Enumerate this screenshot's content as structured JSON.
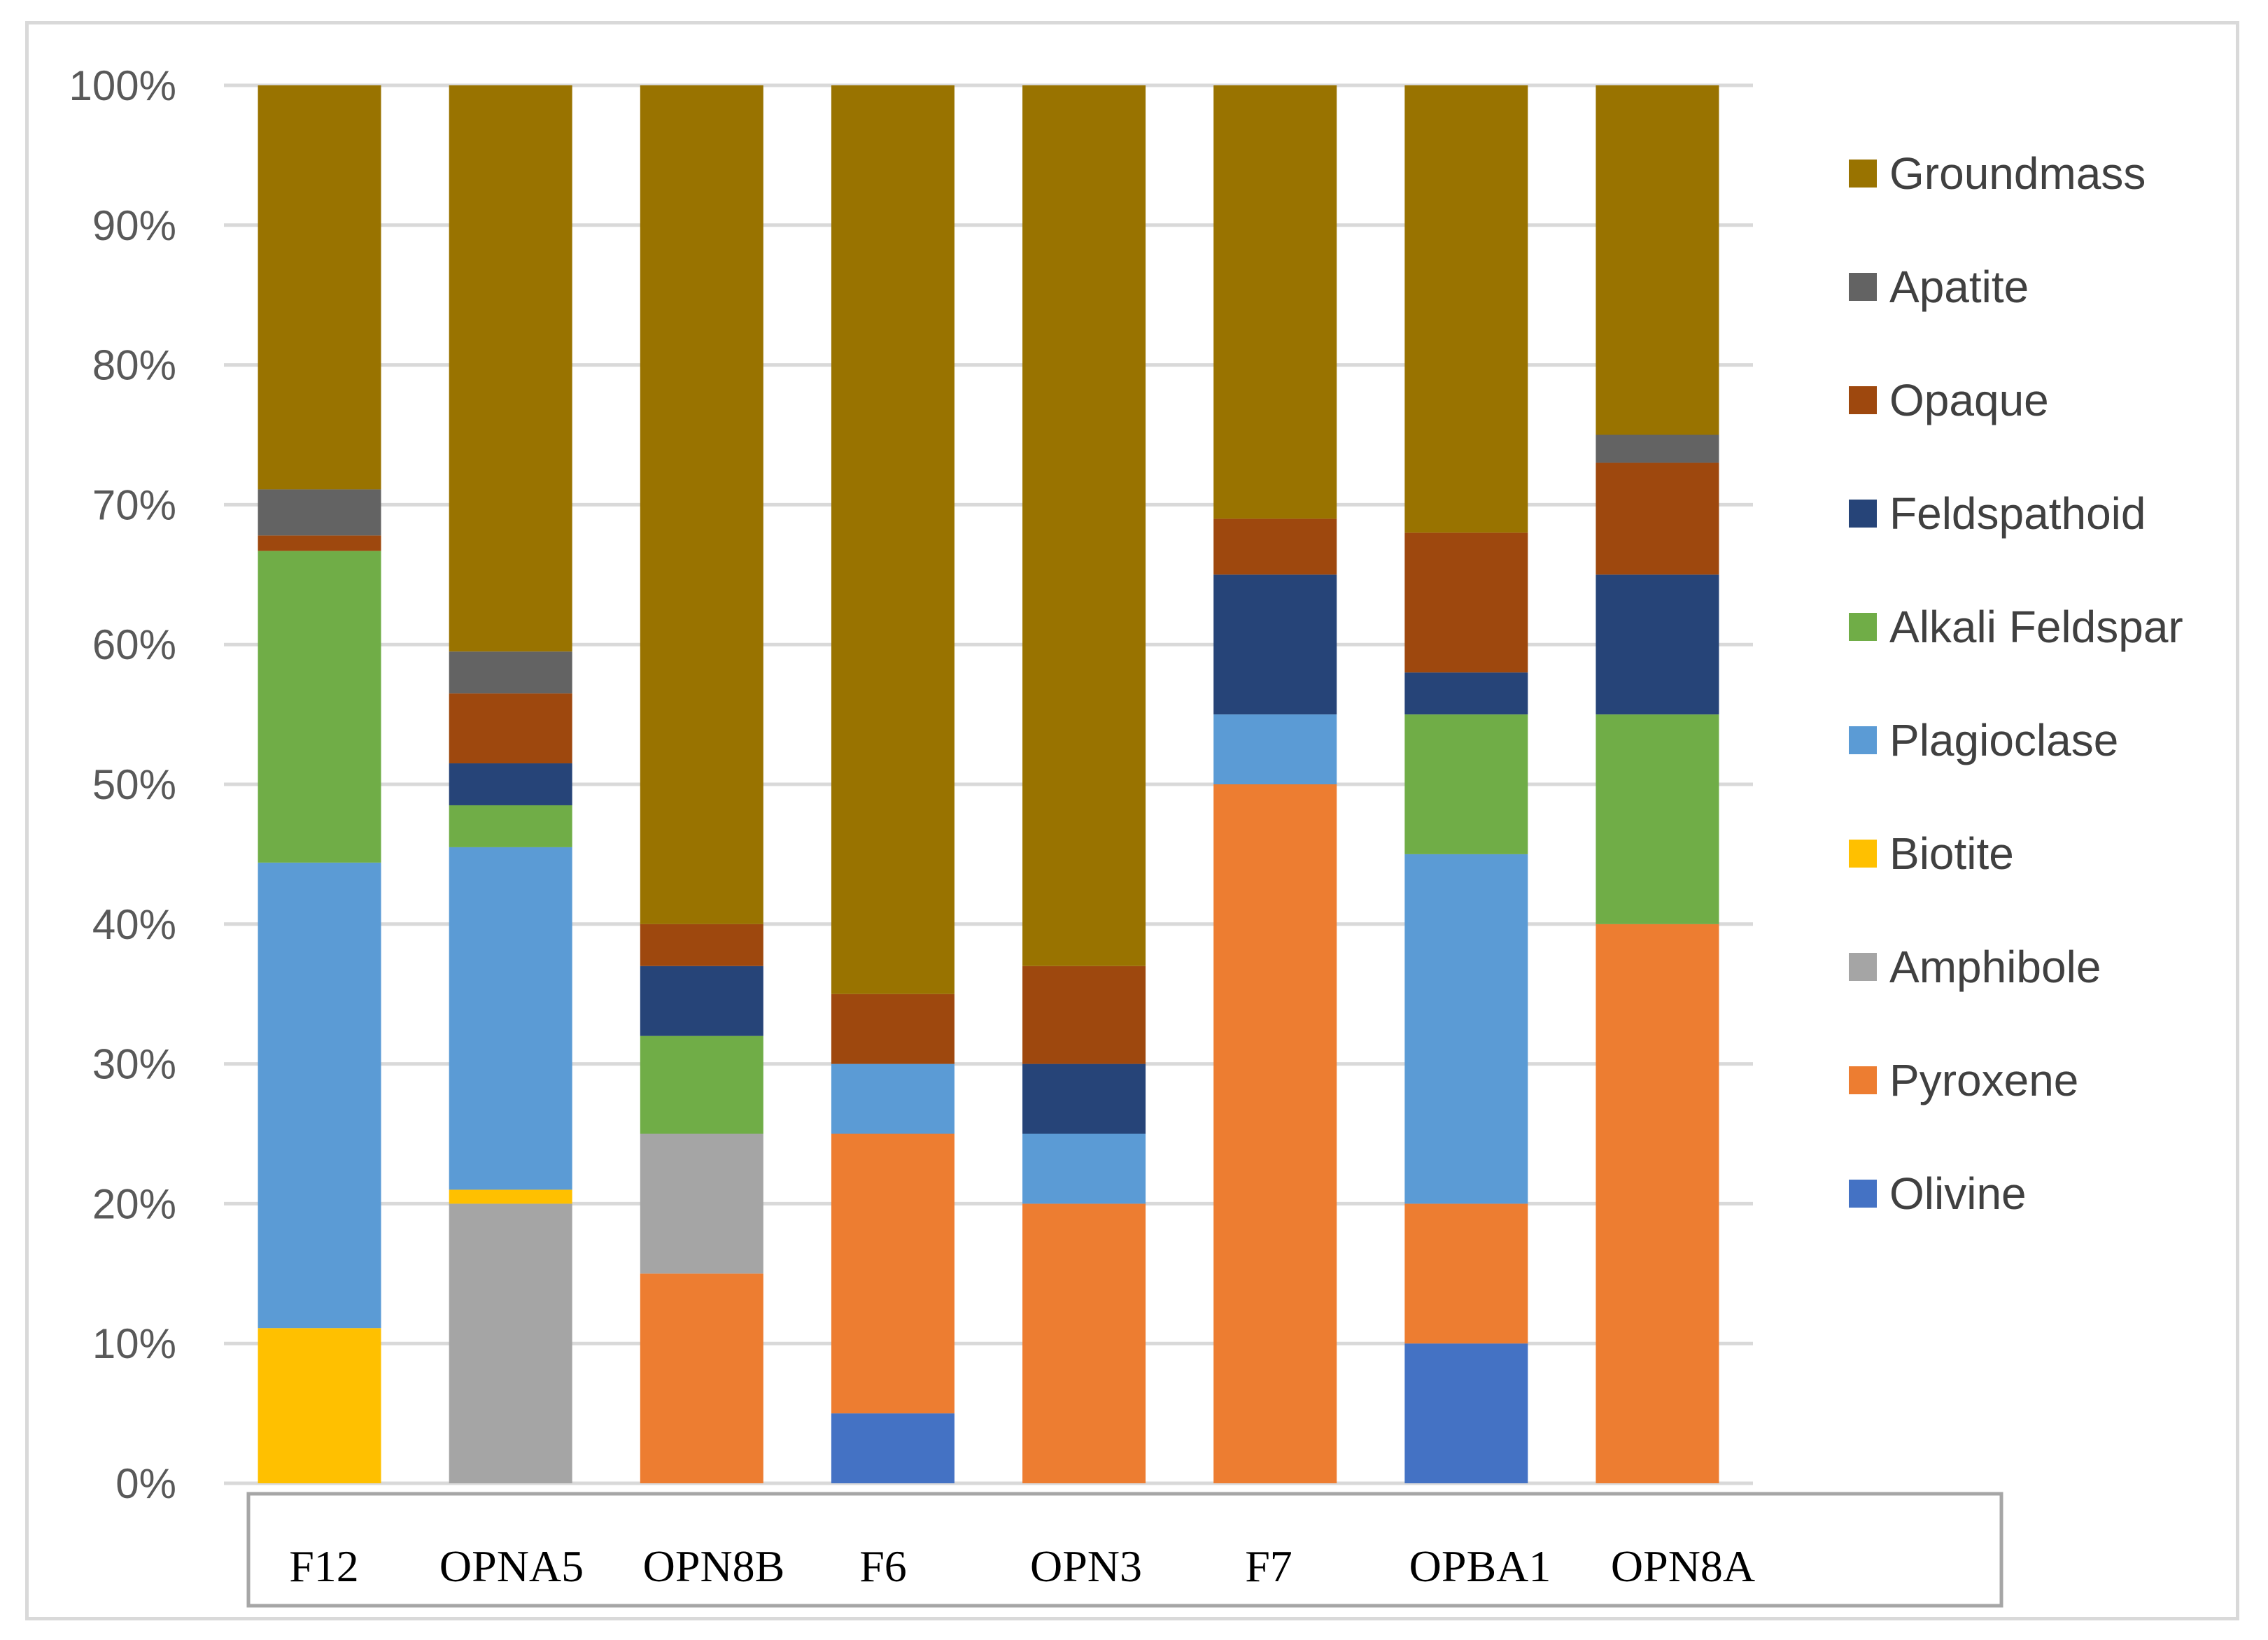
{
  "chart_data": {
    "type": "bar",
    "stacked": true,
    "title": "",
    "xlabel": "",
    "ylabel": "",
    "ylim": [
      0,
      100
    ],
    "yticks": [
      "0%",
      "10%",
      "20%",
      "30%",
      "40%",
      "50%",
      "60%",
      "70%",
      "80%",
      "90%",
      "100%"
    ],
    "grid": true,
    "legend_position": "right",
    "categories": [
      "F12",
      "OPNA5",
      "OPN8B",
      "F6",
      "OPN3",
      "F7",
      "OPBA1",
      "OPN8A"
    ],
    "series": [
      {
        "name": "Olivine",
        "color": "#4472c4",
        "values": [
          0,
          0,
          0,
          5,
          0,
          0,
          10,
          0
        ]
      },
      {
        "name": "Pyroxene",
        "color": "#ed7d31",
        "values": [
          0,
          0,
          15,
          20,
          20,
          50,
          10,
          40
        ]
      },
      {
        "name": "Amphibole",
        "color": "#a5a5a5",
        "values": [
          0,
          20,
          10,
          0,
          0,
          0,
          0,
          0
        ]
      },
      {
        "name": "Biotite",
        "color": "#ffc000",
        "values": [
          11.1,
          1,
          0,
          0,
          0,
          0,
          0,
          0
        ]
      },
      {
        "name": "Plagioclase",
        "color": "#5b9bd5",
        "values": [
          33.3,
          24.5,
          0,
          5,
          5,
          5,
          25,
          0
        ]
      },
      {
        "name": "Alkali Feldspar",
        "color": "#70ad47",
        "values": [
          22.3,
          3,
          7,
          0,
          0,
          0,
          10,
          15
        ]
      },
      {
        "name": "Feldspathoid",
        "color": "#264478",
        "values": [
          0,
          3,
          5,
          0,
          5,
          10,
          3,
          10
        ]
      },
      {
        "name": "Opaque",
        "color": "#9e480e",
        "values": [
          1.1,
          5,
          3,
          5,
          7,
          4,
          10,
          8
        ]
      },
      {
        "name": "Apatite",
        "color": "#636363",
        "values": [
          3.3,
          3,
          0,
          0,
          0,
          0,
          0,
          2
        ]
      },
      {
        "name": "Groundmass",
        "color": "#997300",
        "values": [
          28.9,
          40.5,
          60,
          65,
          63,
          31,
          32,
          25
        ]
      }
    ]
  }
}
